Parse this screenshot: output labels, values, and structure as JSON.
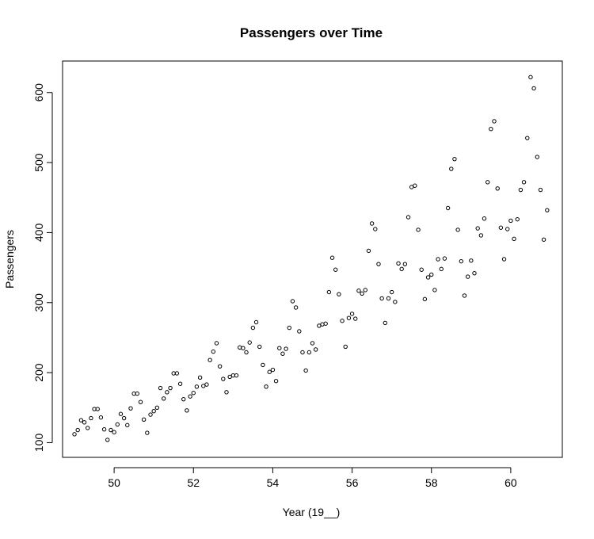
{
  "chart_data": {
    "type": "scatter",
    "title": "Passengers over Time",
    "xlabel": "Year (19__)",
    "ylabel": "Passengers",
    "xlim": [
      48.7,
      61.3
    ],
    "ylim": [
      79,
      645
    ],
    "xticks": [
      50,
      52,
      54,
      56,
      58,
      60
    ],
    "yticks": [
      100,
      200,
      300,
      400,
      500,
      600
    ],
    "grid": false,
    "legend": "none",
    "point_style": "open-circle",
    "colors": {
      "points": "#000000",
      "frame": "#000000",
      "background": "#ffffff"
    },
    "x": [
      49.0,
      49.083,
      49.167,
      49.25,
      49.333,
      49.417,
      49.5,
      49.583,
      49.667,
      49.75,
      49.833,
      49.917,
      50.0,
      50.083,
      50.167,
      50.25,
      50.333,
      50.417,
      50.5,
      50.583,
      50.667,
      50.75,
      50.833,
      50.917,
      51.0,
      51.083,
      51.167,
      51.25,
      51.333,
      51.417,
      51.5,
      51.583,
      51.667,
      51.75,
      51.833,
      51.917,
      52.0,
      52.083,
      52.167,
      52.25,
      52.333,
      52.417,
      52.5,
      52.583,
      52.667,
      52.75,
      52.833,
      52.917,
      53.0,
      53.083,
      53.167,
      53.25,
      53.333,
      53.417,
      53.5,
      53.583,
      53.667,
      53.75,
      53.833,
      53.917,
      54.0,
      54.083,
      54.167,
      54.25,
      54.333,
      54.417,
      54.5,
      54.583,
      54.667,
      54.75,
      54.833,
      54.917,
      55.0,
      55.083,
      55.167,
      55.25,
      55.333,
      55.417,
      55.5,
      55.583,
      55.667,
      55.75,
      55.833,
      55.917,
      56.0,
      56.083,
      56.167,
      56.25,
      56.333,
      56.417,
      56.5,
      56.583,
      56.667,
      56.75,
      56.833,
      56.917,
      57.0,
      57.083,
      57.167,
      57.25,
      57.333,
      57.417,
      57.5,
      57.583,
      57.667,
      57.75,
      57.833,
      57.917,
      58.0,
      58.083,
      58.167,
      58.25,
      58.333,
      58.417,
      58.5,
      58.583,
      58.667,
      58.75,
      58.833,
      58.917,
      59.0,
      59.083,
      59.167,
      59.25,
      59.333,
      59.417,
      59.5,
      59.583,
      59.667,
      59.75,
      59.833,
      59.917,
      60.0,
      60.083,
      60.167,
      60.25,
      60.333,
      60.417,
      60.5,
      60.583,
      60.667,
      60.75,
      60.833,
      60.917
    ],
    "y": [
      112,
      118,
      132,
      129,
      121,
      135,
      148,
      148,
      136,
      119,
      104,
      118,
      115,
      126,
      141,
      135,
      125,
      149,
      170,
      170,
      158,
      133,
      114,
      140,
      145,
      150,
      178,
      163,
      172,
      178,
      199,
      199,
      184,
      162,
      146,
      166,
      171,
      180,
      193,
      181,
      183,
      218,
      230,
      242,
      209,
      191,
      172,
      194,
      196,
      196,
      236,
      235,
      229,
      243,
      264,
      272,
      237,
      211,
      180,
      201,
      204,
      188,
      235,
      227,
      234,
      264,
      302,
      293,
      259,
      229,
      203,
      229,
      242,
      233,
      267,
      269,
      270,
      315,
      364,
      347,
      312,
      274,
      237,
      278,
      284,
      277,
      317,
      313,
      318,
      374,
      413,
      405,
      355,
      306,
      271,
      306,
      315,
      301,
      356,
      348,
      355,
      422,
      465,
      467,
      404,
      347,
      305,
      336,
      340,
      318,
      362,
      348,
      363,
      435,
      491,
      505,
      404,
      359,
      310,
      337,
      360,
      342,
      406,
      396,
      420,
      472,
      548,
      559,
      463,
      407,
      362,
      405,
      417,
      391,
      419,
      461,
      472,
      535,
      622,
      606,
      508,
      461,
      390,
      432
    ]
  }
}
